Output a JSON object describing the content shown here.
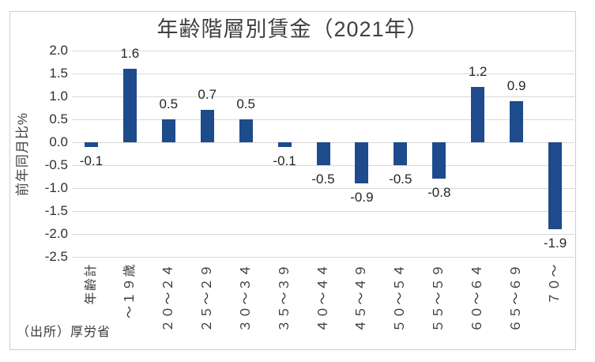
{
  "source_note": "（出所）厚労省",
  "chart_data": {
    "type": "bar",
    "title": "年齢階層別賃金（2021年）",
    "xlabel": "",
    "ylabel": "前年同月比%",
    "categories": [
      "年齢計",
      "～１９歳",
      "２０～２４",
      "２５～２９",
      "３０～３４",
      "３５～３９",
      "４０～４４",
      "４５～４９",
      "５０～５４",
      "５５～５９",
      "６０～６４",
      "６５～６９",
      "７０～"
    ],
    "values": [
      -0.1,
      1.6,
      0.5,
      0.7,
      0.5,
      -0.1,
      -0.5,
      -0.9,
      -0.5,
      -0.8,
      1.2,
      0.9,
      -1.9
    ],
    "ylim": [
      -2.5,
      2.0
    ],
    "ytick_step": 0.5,
    "grid": true,
    "legend": false,
    "value_labels_shown": true,
    "x_labels_rotated_degrees": 90,
    "colors": {
      "bar": "#1d4b8c",
      "gridline": "#d9d9d9",
      "text": "#3a3a3a",
      "card_border": "#cfcfcf"
    }
  }
}
